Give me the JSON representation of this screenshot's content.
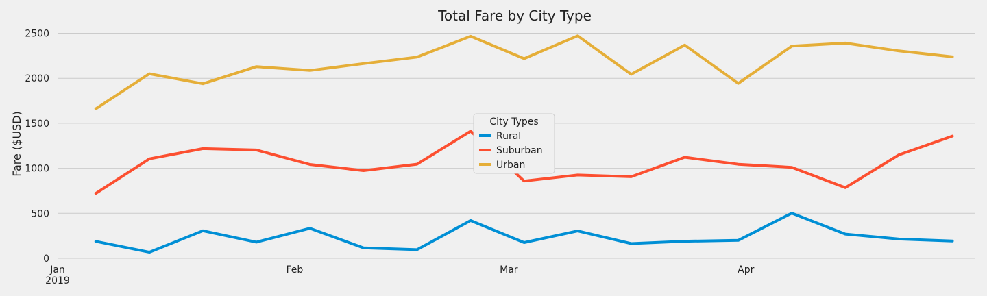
{
  "chart_data": {
    "type": "line",
    "title": "Total Fare by City Type",
    "xlabel": "",
    "ylabel": "Fare ($USD)",
    "ylim": [
      0,
      2580
    ],
    "yticks": [
      0,
      500,
      1000,
      1500,
      2000,
      2500
    ],
    "xlim": [
      "2019-01-01",
      "2019-05-01"
    ],
    "xticks": [
      {
        "date": "2019-01-01",
        "label": "Jan",
        "sublabel": "2019"
      },
      {
        "date": "2019-02-01",
        "label": "Feb",
        "sublabel": ""
      },
      {
        "date": "2019-03-01",
        "label": "Mar",
        "sublabel": ""
      },
      {
        "date": "2019-04-01",
        "label": "Apr",
        "sublabel": ""
      }
    ],
    "x": [
      "2019-01-06",
      "2019-01-13",
      "2019-01-20",
      "2019-01-27",
      "2019-02-03",
      "2019-02-10",
      "2019-02-17",
      "2019-02-24",
      "2019-03-03",
      "2019-03-10",
      "2019-03-17",
      "2019-03-24",
      "2019-03-31",
      "2019-04-07",
      "2019-04-14",
      "2019-04-21",
      "2019-04-28"
    ],
    "series": [
      {
        "name": "Rural",
        "color": "#008fd5",
        "values": [
          187.92,
          67.65,
          306.0,
          179.69,
          333.08,
          115.8,
          95.82,
          419.06,
          175.14,
          303.94,
          163.39,
          189.76,
          199.42,
          501.24,
          269.79,
          214.14,
          191.85
        ]
      },
      {
        "name": "Suburban",
        "color": "#fc4f30",
        "values": [
          721.6,
          1105.13,
          1218.2,
          1203.28,
          1042.79,
          974.34,
          1045.5,
          1412.74,
          858.46,
          925.27,
          906.2,
          1122.2,
          1045.06,
          1010.73,
          784.82,
          1149.27,
          1357.75
        ]
      },
      {
        "name": "Urban",
        "color": "#e5ae38",
        "values": [
          1661.68,
          2050.43,
          1939.02,
          2129.51,
          2086.94,
          2162.64,
          2235.07,
          2466.29,
          2218.2,
          2470.93,
          2044.42,
          2368.37,
          1942.77,
          2356.7,
          2390.72,
          2303.8,
          2238.29
        ]
      }
    ],
    "legend": {
      "title": "City Types",
      "placement": "center"
    },
    "grid": true
  }
}
